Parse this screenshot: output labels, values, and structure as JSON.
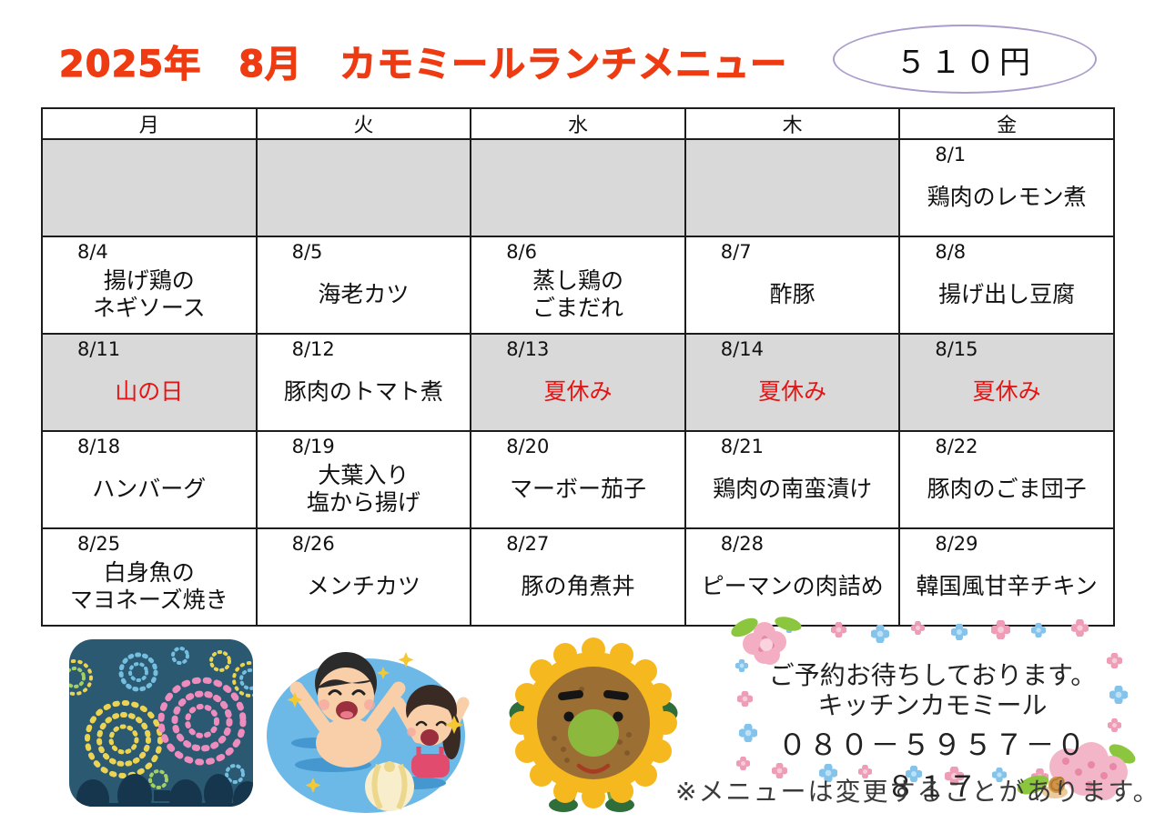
{
  "page": {
    "title": "2025年　8月　カモミールランチメニュー",
    "price_badge": "５１０円",
    "footer_note": "※メニューは変更することがあります。"
  },
  "calendar": {
    "weekday_headers": [
      "月",
      "火",
      "水",
      "木",
      "金"
    ],
    "rows": [
      {
        "cells": [
          {
            "date": "",
            "menu_lines": [],
            "gray": true,
            "red": false
          },
          {
            "date": "",
            "menu_lines": [],
            "gray": true,
            "red": false
          },
          {
            "date": "",
            "menu_lines": [],
            "gray": true,
            "red": false
          },
          {
            "date": "",
            "menu_lines": [],
            "gray": true,
            "red": false
          },
          {
            "date": "8/1",
            "menu_lines": [
              "鶏肉のレモン煮"
            ],
            "gray": false,
            "red": false
          }
        ]
      },
      {
        "cells": [
          {
            "date": "8/4",
            "menu_lines": [
              "揚げ鶏の",
              "ネギソース"
            ],
            "gray": false,
            "red": false
          },
          {
            "date": "8/5",
            "menu_lines": [
              "海老カツ"
            ],
            "gray": false,
            "red": false
          },
          {
            "date": "8/6",
            "menu_lines": [
              "蒸し鶏の",
              "ごまだれ"
            ],
            "gray": false,
            "red": false
          },
          {
            "date": "8/7",
            "menu_lines": [
              "酢豚"
            ],
            "gray": false,
            "red": false
          },
          {
            "date": "8/8",
            "menu_lines": [
              "揚げ出し豆腐"
            ],
            "gray": false,
            "red": false
          }
        ]
      },
      {
        "cells": [
          {
            "date": "8/11",
            "menu_lines": [
              "山の日"
            ],
            "gray": true,
            "red": true
          },
          {
            "date": "8/12",
            "menu_lines": [
              "豚肉のトマト煮"
            ],
            "gray": false,
            "red": false
          },
          {
            "date": "8/13",
            "menu_lines": [
              "夏休み"
            ],
            "gray": true,
            "red": true
          },
          {
            "date": "8/14",
            "menu_lines": [
              "夏休み"
            ],
            "gray": true,
            "red": true
          },
          {
            "date": "8/15",
            "menu_lines": [
              "夏休み"
            ],
            "gray": true,
            "red": true
          }
        ]
      },
      {
        "cells": [
          {
            "date": "8/18",
            "menu_lines": [
              "ハンバーグ"
            ],
            "gray": false,
            "red": false
          },
          {
            "date": "8/19",
            "menu_lines": [
              "大葉入り",
              "塩から揚げ"
            ],
            "gray": false,
            "red": false
          },
          {
            "date": "8/20",
            "menu_lines": [
              "マーボー茄子"
            ],
            "gray": false,
            "red": false
          },
          {
            "date": "8/21",
            "menu_lines": [
              "鶏肉の南蛮漬け"
            ],
            "gray": false,
            "red": false
          },
          {
            "date": "8/22",
            "menu_lines": [
              "豚肉のごま団子"
            ],
            "gray": false,
            "red": false
          }
        ]
      },
      {
        "cells": [
          {
            "date": "8/25",
            "menu_lines": [
              "白身魚の",
              "マヨネーズ焼き"
            ],
            "gray": false,
            "red": false
          },
          {
            "date": "8/26",
            "menu_lines": [
              "メンチカツ"
            ],
            "gray": false,
            "red": false
          },
          {
            "date": "8/27",
            "menu_lines": [
              "豚の角煮丼"
            ],
            "gray": false,
            "red": false
          },
          {
            "date": "8/28",
            "menu_lines": [
              "ピーマンの肉詰め"
            ],
            "gray": false,
            "red": false
          },
          {
            "date": "8/29",
            "menu_lines": [
              "韓国風甘辛チキン"
            ],
            "gray": false,
            "red": false
          }
        ]
      }
    ]
  },
  "contact_box": {
    "line1": "ご予約お待ちしております。",
    "line2": "キッチンカモミール",
    "phone": "０８０－５９５７－０８１７"
  },
  "illustrations": {
    "fireworks": "fireworks-night-sky-illustration",
    "swimming": "children-swimming-beachball-illustration",
    "sunflower": "sunflower-character-illustration",
    "flower_frame": "pink-blue-flower-frame-with-snail"
  },
  "colors": {
    "title_red": "#ee3b12",
    "holiday_red": "#e61414",
    "gray_cell": "#d9d9d9",
    "badge_border_purple": "#ab9dca",
    "table_border": "#1c1c1c"
  }
}
